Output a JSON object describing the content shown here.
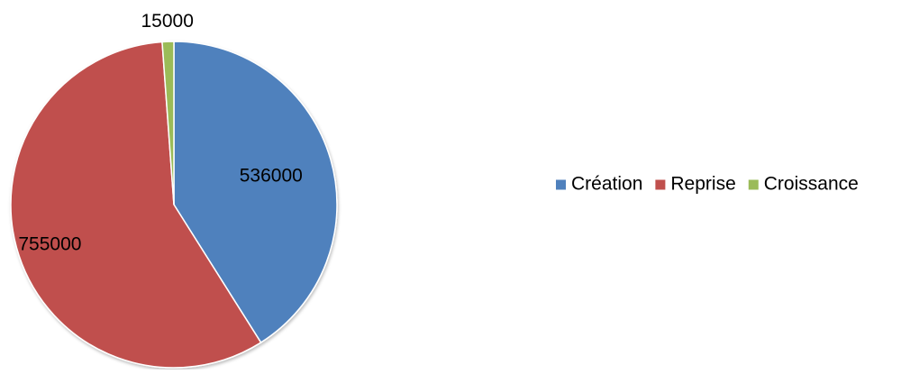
{
  "chart_data": {
    "type": "pie",
    "title": "",
    "categories": [
      "Création",
      "Reprise",
      "Croissance"
    ],
    "values": [
      536000,
      755000,
      15000
    ],
    "data_labels": [
      "536000",
      "755000",
      "15000"
    ],
    "colors": [
      "#4F81BD",
      "#C0504D",
      "#9BBB59"
    ],
    "legend": {
      "placement": "right",
      "entries": [
        "Création",
        "Reprise",
        "Croissance"
      ]
    },
    "start_angle": "12 o'clock",
    "direction": "clockwise"
  }
}
